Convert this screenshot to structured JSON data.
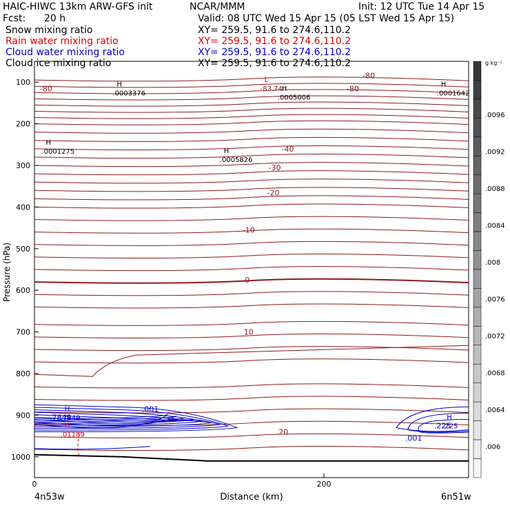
{
  "header": {
    "title_left": "HAIC-HIWC 13km ARW-GFS init",
    "org": "NCAR/MMM",
    "init": "Init: 12 UTC Tue 14 Apr 15",
    "fcst_label": "Fcst:",
    "fcst_value": "20 h",
    "valid": "Valid: 08 UTC Wed 15 Apr 15 (05 LST Wed 15 Apr 15)",
    "fields": [
      {
        "name": "Snow mixing ratio",
        "xy": "XY= 259.5, 91.6 to 274.6,110.2",
        "color": "#000000"
      },
      {
        "name": "Rain water mixing ratio",
        "xy": "XY= 259.5, 91.6 to 274.6,110.2",
        "color": "#e00000"
      },
      {
        "name": "Cloud water mixing ratio",
        "xy": "XY= 259.5, 91.6 to 274.6,110.2",
        "color": "#0000cc"
      },
      {
        "name": "Cloud ice mixing ratio",
        "xy": "XY= 259.5, 91.6 to 274.6,110.2",
        "color": "#000000"
      }
    ]
  },
  "chart_data": {
    "type": "contour-cross-section",
    "ylabel": "Pressure (hPa)",
    "xlabel": "Distance (km)",
    "x_start_label": "4n53w",
    "x_end_label": "6n51w",
    "x_ticks": [
      0,
      200
    ],
    "xlim": [
      0,
      300
    ],
    "y_ticks": [
      100,
      200,
      300,
      400,
      500,
      600,
      700,
      800,
      900,
      1000
    ],
    "ylim": [
      50,
      1050
    ],
    "colorbar": {
      "unit": "g kg⁻¹",
      "labels": [
        ".0096",
        ".0092",
        ".0088",
        ".0084",
        ".008",
        ".0076",
        ".0072",
        ".0068",
        ".0064",
        ".006"
      ]
    },
    "temperature_contours": [
      {
        "label": "-80",
        "x": 8,
        "p": 115
      },
      {
        "label": "-80",
        "x": 220,
        "p": 115
      },
      {
        "label": "-80",
        "x": 231,
        "p": 84
      },
      {
        "label": "-40",
        "x": 175,
        "p": 260
      },
      {
        "label": "-30",
        "x": 166,
        "p": 305
      },
      {
        "label": "-20",
        "x": 165,
        "p": 365
      },
      {
        "label": "-10",
        "x": 148,
        "p": 455
      },
      {
        "label": "0",
        "x": 147,
        "p": 575
      },
      {
        "label": "10",
        "x": 148,
        "p": 700
      },
      {
        "label": "20",
        "x": 172,
        "p": 940
      }
    ],
    "cloud_water_labels": [
      {
        "label": ".001",
        "x": 80,
        "p": 885
      },
      {
        "label": ".001",
        "x": 262,
        "p": 955
      },
      {
        "label": ".225",
        "x": 282,
        "p": 925
      },
      {
        "label": ".7849",
        "x": 18,
        "p": 905
      }
    ],
    "extrema": [
      {
        "mark": "H",
        "value": ".0003376",
        "x": 54,
        "p": 115,
        "color": "#000000"
      },
      {
        "mark": "L",
        "value": "-83.74",
        "x": 156,
        "p": 105,
        "color": "#8b1a1a"
      },
      {
        "mark": "H",
        "value": ".0005006",
        "x": 168,
        "p": 125,
        "color": "#000000"
      },
      {
        "mark": "H",
        "value": ".0001642",
        "x": 278,
        "p": 115,
        "color": "#000000"
      },
      {
        "mark": "H",
        "value": ".0001275",
        "x": 5,
        "p": 255,
        "color": "#000000"
      },
      {
        "mark": "H",
        "value": ".0005826",
        "x": 128,
        "p": 275,
        "color": "#000000"
      },
      {
        "mark": "H",
        "value": ".7849",
        "x": 18,
        "p": 895,
        "color": "#0000cc"
      },
      {
        "mark": "H",
        "value": ".01189",
        "x": 18,
        "p": 935,
        "color": "#e00000"
      },
      {
        "mark": "H",
        "value": ".225",
        "x": 282,
        "p": 915,
        "color": "#0000cc"
      }
    ]
  }
}
